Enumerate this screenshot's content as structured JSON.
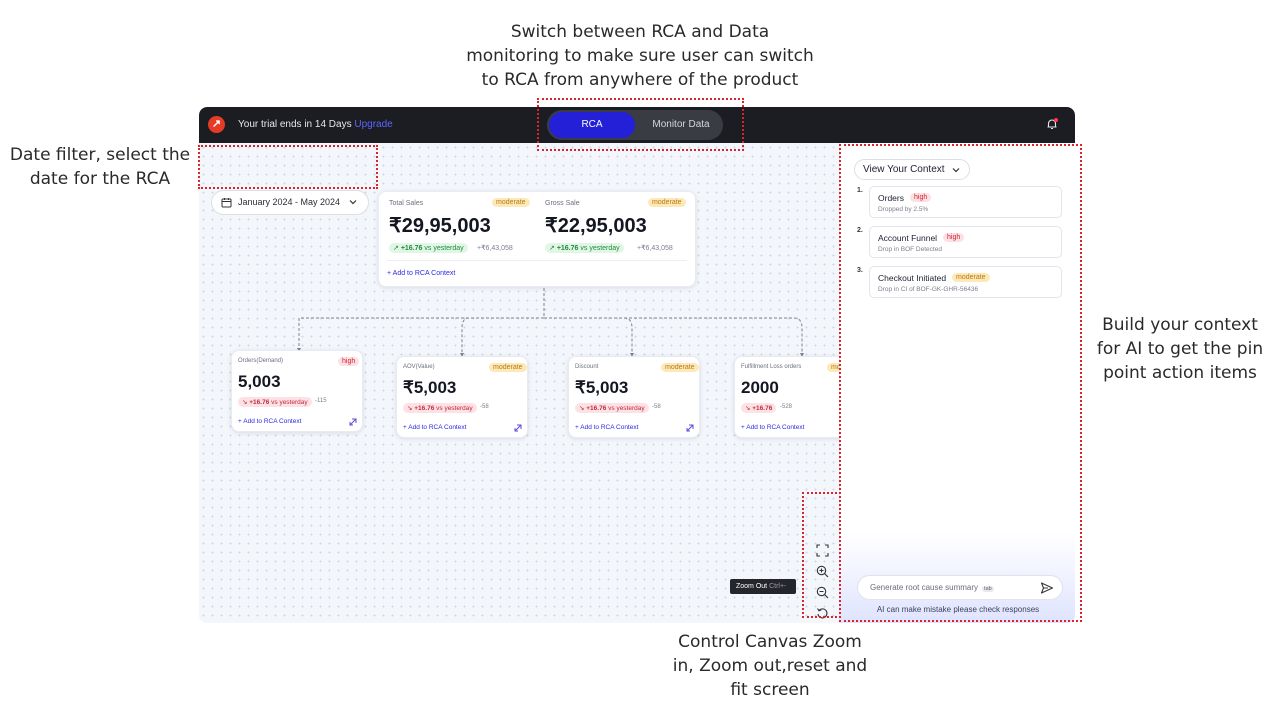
{
  "annotations": {
    "top": "Switch between RCA and Data monitoring to make sure user can switch to RCA from anywhere of the product",
    "top_lines": [
      "Switch between RCA and Data",
      "monitoring to make sure user can switch",
      "to RCA from anywhere of the product"
    ],
    "left_lines": [
      "Date filter, select the",
      "date for the RCA"
    ],
    "right_lines": [
      "Build your context",
      "for AI to get the pin",
      "point action items"
    ],
    "bottom_lines": [
      "Control Canvas Zoom",
      "in, Zoom out,reset and",
      "fit screen"
    ]
  },
  "topbar": {
    "trial_text": "Your trial ends in 14 Days",
    "upgrade": "Upgrade",
    "toggle": {
      "rca": "RCA",
      "monitor": "Monitor Data",
      "selected": "RCA"
    }
  },
  "date_filter": {
    "value": "January 2024 - May 2024"
  },
  "main_cards": [
    {
      "label": "Total Sales",
      "badge": "moderate",
      "value": "₹29,95,003",
      "change": "+16.76",
      "change_suffix": "vs yesterday",
      "sub": "+₹6,43,058"
    },
    {
      "label": "Gross Sale",
      "badge": "moderate",
      "value": "₹22,95,003",
      "change": "+16.76",
      "change_suffix": "vs yesterday",
      "sub": "+₹6,43,058"
    }
  ],
  "main_add": "+ Add to RCA Context",
  "child_cards": [
    {
      "label": "Orders(Demand)",
      "badge": "high",
      "value": "5,003",
      "change": "+16.76",
      "change_suffix": "vs yesterday",
      "sub": "-115",
      "add": "+ Add to RCA Context"
    },
    {
      "label": "AOV(Value)",
      "badge": "moderate",
      "value": "₹5,003",
      "change": "+16.76",
      "change_suffix": "vs yesterday",
      "sub": "-58",
      "add": "+ Add to RCA Context"
    },
    {
      "label": "Discount",
      "badge": "moderate",
      "value": "₹5,003",
      "change": "+16.76",
      "change_suffix": "vs yesterday",
      "sub": "-58",
      "add": "+ Add to RCA Context"
    },
    {
      "label": "Fulfillment Loss orders",
      "badge": "mo",
      "value": "2000",
      "change": "+16.76",
      "change_suffix": "",
      "sub": "-528",
      "add": "+ Add to RCA Context"
    }
  ],
  "zoom": {
    "tooltip": "Zoom Out",
    "shortcut": "Ctrl+-"
  },
  "context_panel": {
    "title": "View Your Context",
    "items": [
      {
        "num": "1.",
        "title": "Orders",
        "badge": "high",
        "desc": "Dropped by 2.5%"
      },
      {
        "num": "2.",
        "title": "Account Funnel",
        "badge": "high",
        "desc": "Drop in BOF Detected"
      },
      {
        "num": "3.",
        "title": "Checkout Initiated",
        "badge": "moderate",
        "desc": "Drop in CI of BOF-GK-GHR-56436"
      }
    ],
    "input_placeholder": "Generate root cause summary",
    "input_kbd": "tab",
    "disclaimer": "AI can make mistake please check responses"
  },
  "colors": {
    "accent": "#2320d8",
    "topbar": "#1c1d22",
    "annotation_outline": "#d9232d",
    "high": "#cf2436",
    "moderate": "#b77a12",
    "positive": "#1f8c3b"
  }
}
